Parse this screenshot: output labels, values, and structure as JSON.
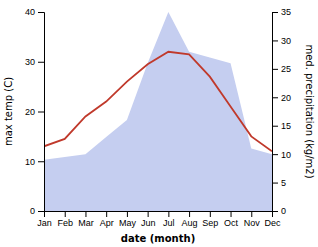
{
  "chart_data": {
    "type": "line",
    "categories": [
      "Jan",
      "Feb",
      "Mar",
      "Apr",
      "May",
      "Jun",
      "Jul",
      "Aug",
      "Sep",
      "Oct",
      "Nov",
      "Dec"
    ],
    "series": [
      {
        "type": "area",
        "axis": "y2",
        "color": "#c5cef0",
        "values": [
          9.0,
          9.5,
          10.0,
          13.0,
          16.0,
          26.0,
          35.0,
          28.0,
          27.0,
          26.0,
          11.0,
          10.0
        ]
      },
      {
        "type": "line",
        "color": "#c0392b",
        "values": [
          13.0,
          14.5,
          19.0,
          22.0,
          26.0,
          29.5,
          32.0,
          31.5,
          27.0,
          21.0,
          15.0,
          12.0
        ]
      }
    ],
    "xlabel": "date (month)",
    "ylabel": "max temp (C)",
    "y2label": "med. precipitation (kg/m2)",
    "ylim": [
      0,
      40
    ],
    "yticks": [
      0,
      10,
      20,
      30,
      40
    ],
    "y2lim": [
      0,
      35
    ],
    "y2ticks": [
      0,
      5,
      10,
      15,
      20,
      25,
      30,
      35
    ]
  }
}
